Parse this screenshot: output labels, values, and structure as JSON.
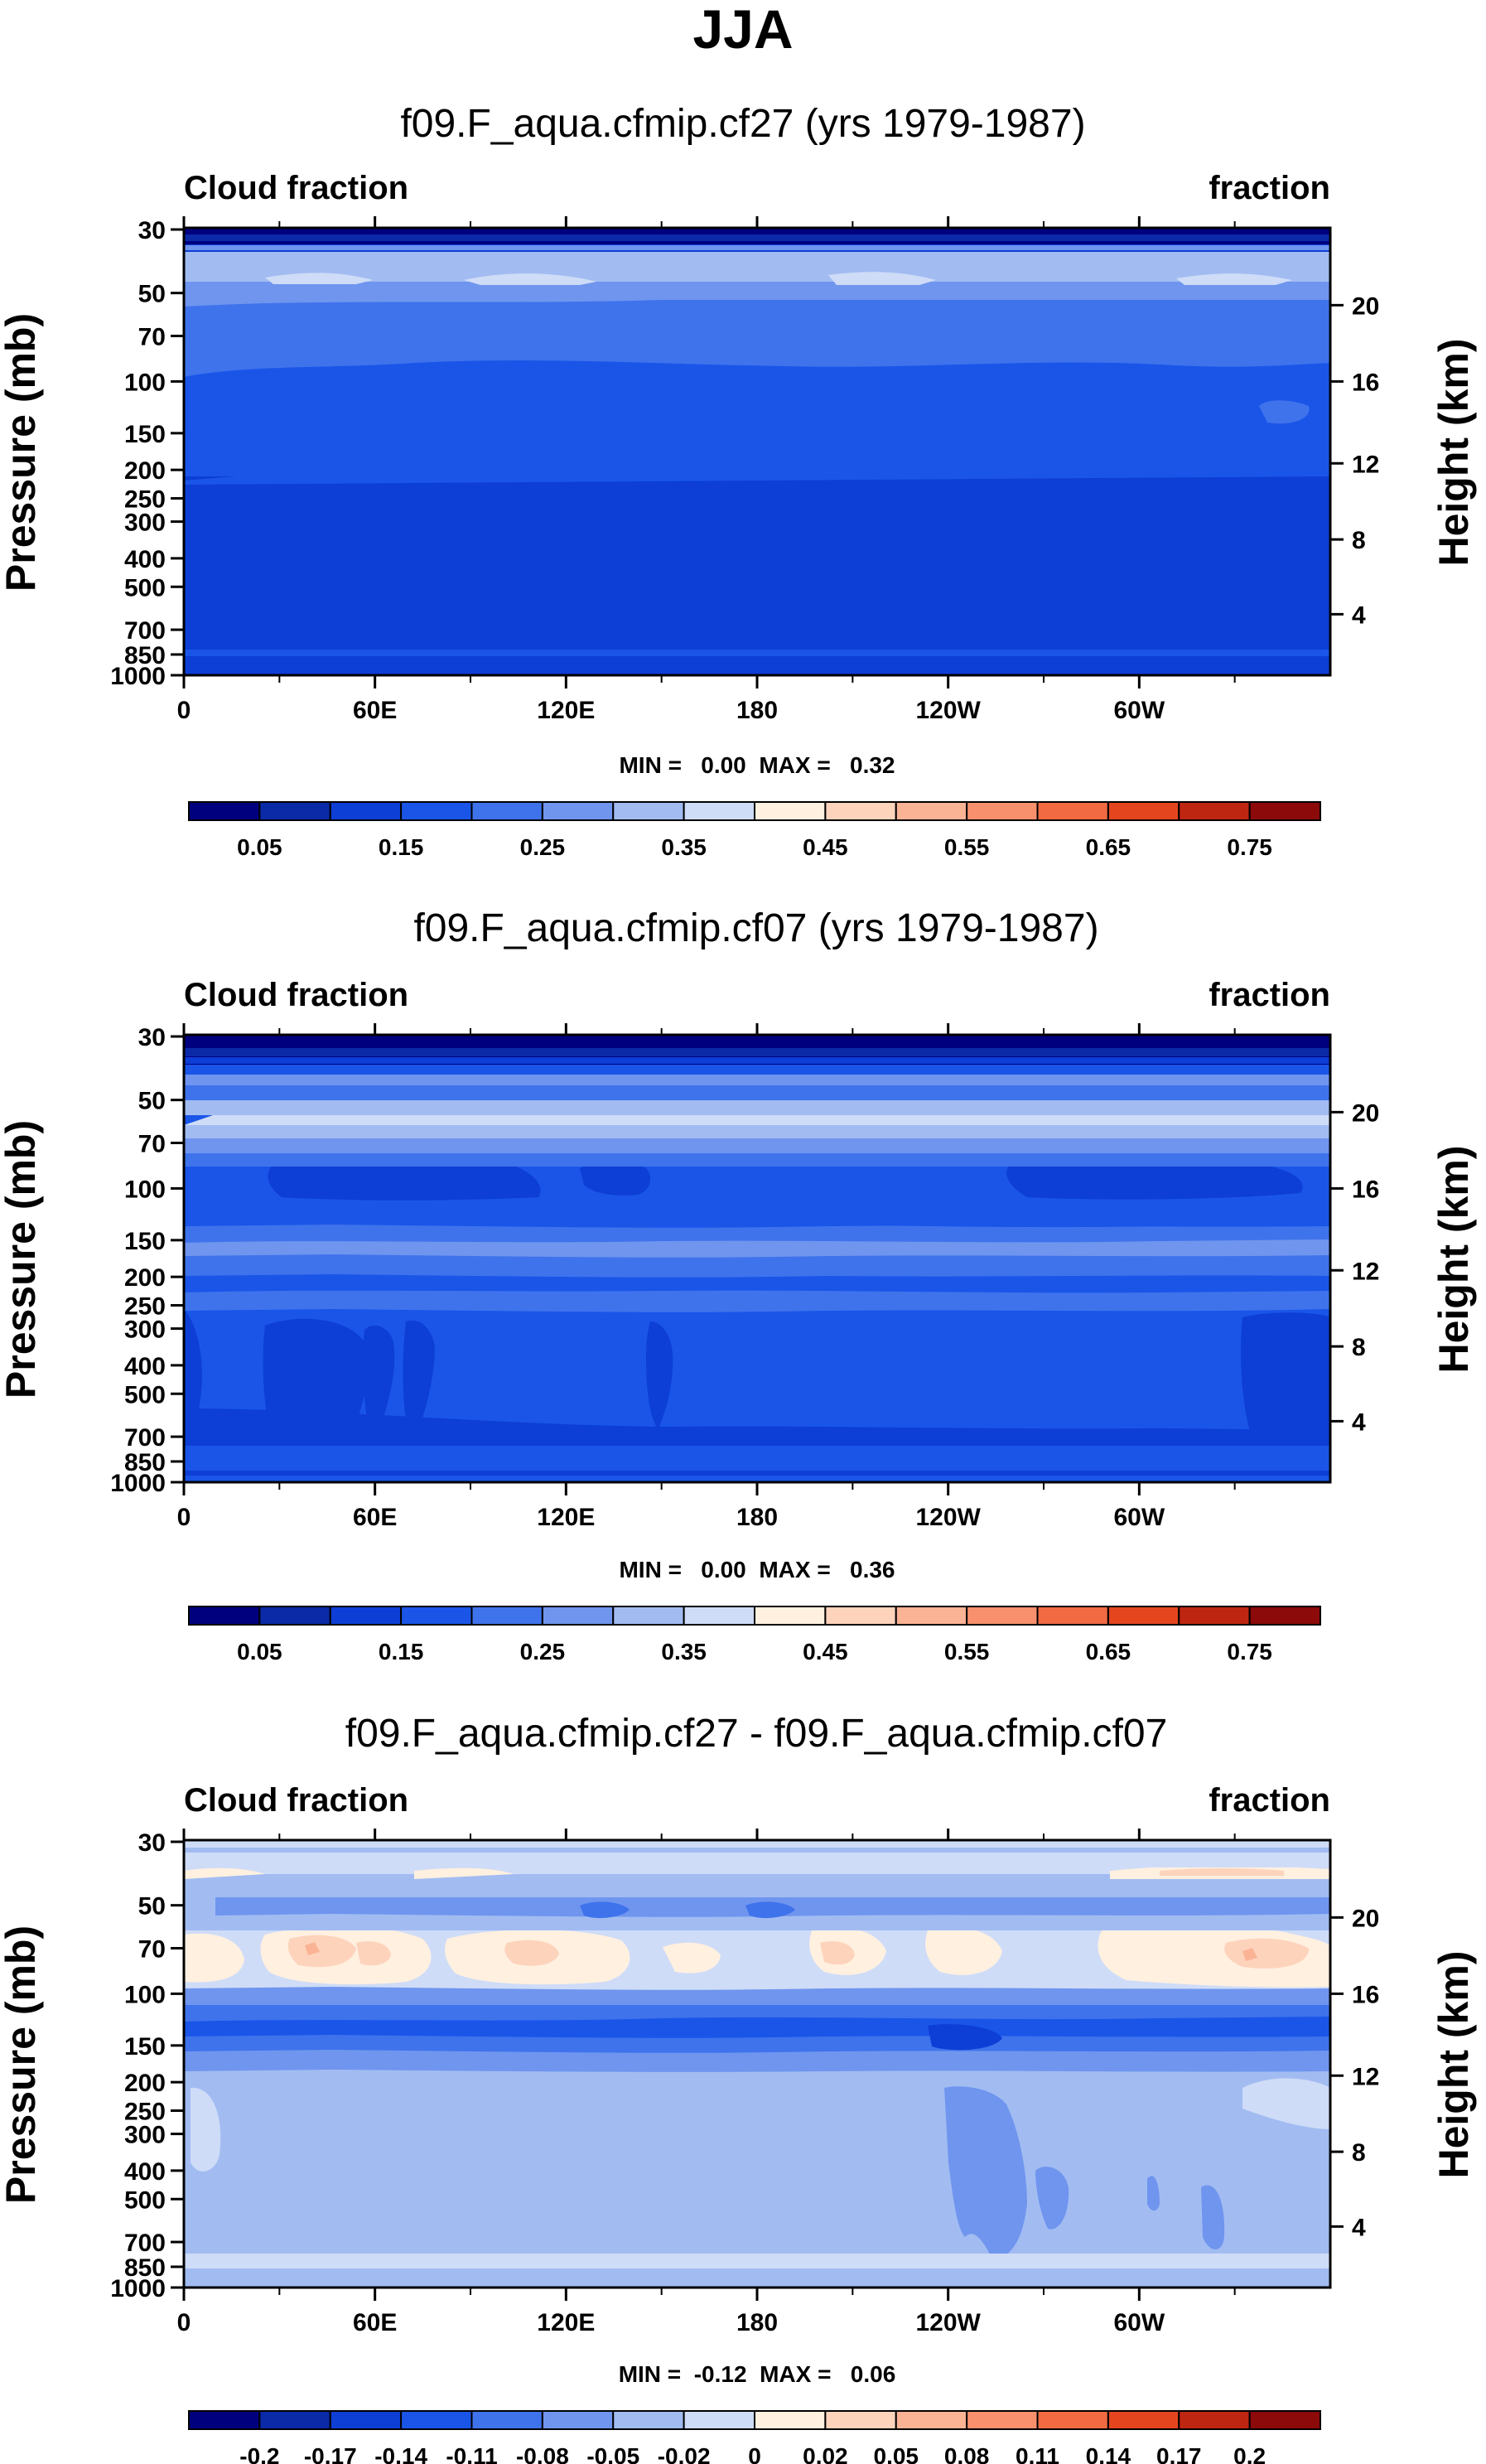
{
  "title": "JJA",
  "chart_data": [
    {
      "type": "heatmap",
      "title": "f09.F_aqua.cfmip.cf27 (yrs 1979-1987)",
      "left_string": "Cloud fraction",
      "right_string": "fraction",
      "ylabel": "Pressure (mb)",
      "ylabel_right": "Height (km)",
      "xticks": [
        "0",
        "60E",
        "120E",
        "180",
        "120W",
        "60W"
      ],
      "yticks": [
        "30",
        "50",
        "70",
        "100",
        "150",
        "200",
        "250",
        "300",
        "400",
        "500",
        "700",
        "850",
        "1000"
      ],
      "height_ticks": [
        "20",
        "16",
        "12",
        "8",
        "4"
      ],
      "stats": "MIN =   0.00  MAX =   0.32",
      "colorbar_labels": [
        "0.05",
        "0.15",
        "0.25",
        "0.35",
        "0.45",
        "0.55",
        "0.65",
        "0.75"
      ]
    },
    {
      "type": "heatmap",
      "title": "f09.F_aqua.cfmip.cf07 (yrs 1979-1987)",
      "left_string": "Cloud fraction",
      "right_string": "fraction",
      "ylabel": "Pressure (mb)",
      "ylabel_right": "Height (km)",
      "xticks": [
        "0",
        "60E",
        "120E",
        "180",
        "120W",
        "60W"
      ],
      "yticks": [
        "30",
        "50",
        "70",
        "100",
        "150",
        "200",
        "250",
        "300",
        "400",
        "500",
        "700",
        "850",
        "1000"
      ],
      "height_ticks": [
        "20",
        "16",
        "12",
        "8",
        "4"
      ],
      "stats": "MIN =   0.00  MAX =   0.36",
      "colorbar_labels": [
        "0.05",
        "0.15",
        "0.25",
        "0.35",
        "0.45",
        "0.55",
        "0.65",
        "0.75"
      ]
    },
    {
      "type": "heatmap",
      "title": "f09.F_aqua.cfmip.cf27 - f09.F_aqua.cfmip.cf07",
      "left_string": "Cloud fraction",
      "right_string": "fraction",
      "ylabel": "Pressure (mb)",
      "ylabel_right": "Height (km)",
      "xticks": [
        "0",
        "60E",
        "120E",
        "180",
        "120W",
        "60W"
      ],
      "yticks": [
        "30",
        "50",
        "70",
        "100",
        "150",
        "200",
        "250",
        "300",
        "400",
        "500",
        "700",
        "850",
        "1000"
      ],
      "height_ticks": [
        "20",
        "16",
        "12",
        "8",
        "4"
      ],
      "stats": "MIN =  -0.12  MAX =   0.06",
      "colorbar_labels": [
        "-0.2",
        "-0.17",
        "-0.14",
        "-0.11",
        "-0.08",
        "-0.05",
        "-0.02",
        "0",
        "0.02",
        "0.05",
        "0.08",
        "0.11",
        "0.14",
        "0.17",
        "0.2"
      ]
    }
  ],
  "colors": {
    "cb_abs": [
      "#00007f",
      "#0a2aa8",
      "#0d3ed6",
      "#1a55e8",
      "#3f73ec",
      "#6f95ee",
      "#a2bcf2",
      "#cfdcf7",
      "#fff0e0",
      "#fdd3bc",
      "#fbb396",
      "#f8906d",
      "#f16a42",
      "#e4451e",
      "#bf2612",
      "#8c0a0a"
    ],
    "cb_diff": [
      "#00007f",
      "#0a2aa8",
      "#0d3ed6",
      "#1a55e8",
      "#3f73ec",
      "#6f95ee",
      "#a2bcf2",
      "#cfdcf7",
      "#fff0e0",
      "#fdd3bc",
      "#fbb396",
      "#f8906d",
      "#f16a42",
      "#e4451e",
      "#bf2612",
      "#8c0a0a"
    ]
  }
}
